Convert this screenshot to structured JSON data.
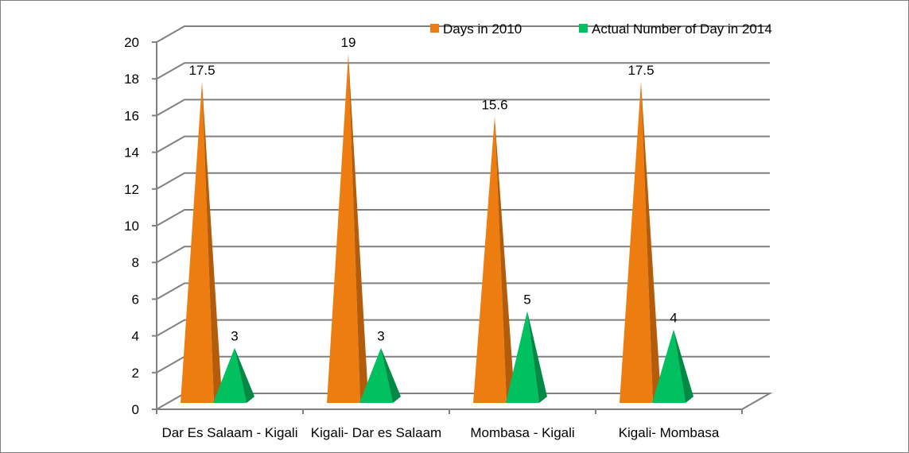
{
  "chart_data": {
    "type": "bar",
    "subtype": "3d-pyramid",
    "title": "",
    "xlabel": "",
    "ylabel": "",
    "categories": [
      "Dar Es Salaam - Kigali",
      "Kigali- Dar es Salaam",
      "Mombasa - Kigali",
      "Kigali- Mombasa"
    ],
    "series": [
      {
        "name": "Days in 2010",
        "values": [
          17.5,
          19,
          15.6,
          17.5
        ],
        "color": "#ed7d11",
        "dark": "#b35d0c"
      },
      {
        "name": "Actual Number of Day in 2014",
        "values": [
          3,
          3,
          5,
          4
        ],
        "color": "#00c060",
        "dark": "#008a45"
      }
    ],
    "ylim": [
      0,
      20
    ],
    "yticks": [
      0,
      2,
      4,
      6,
      8,
      10,
      12,
      14,
      16,
      18,
      20
    ],
    "data_labels": true,
    "grid": true,
    "legend_position": "top-right"
  }
}
